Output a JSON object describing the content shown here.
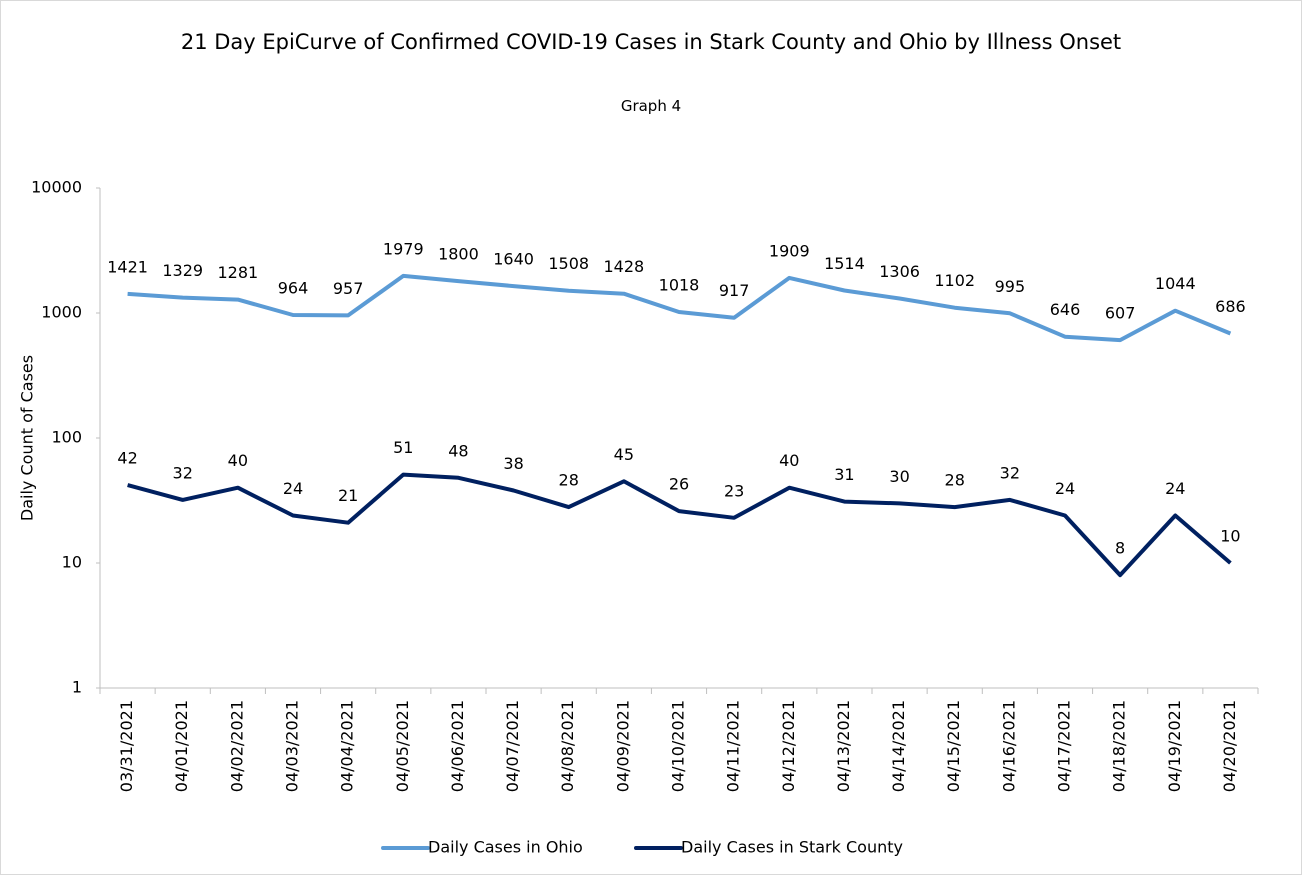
{
  "chart_data": {
    "type": "line",
    "title": "21 Day EpiCurve of Confirmed COVID-19 Cases in Stark County and Ohio by Illness Onset",
    "subtitle": "Graph 4",
    "y_label": "Daily Count of Cases",
    "categories": [
      "03/31/2021",
      "04/01/2021",
      "04/02/2021",
      "04/03/2021",
      "04/04/2021",
      "04/05/2021",
      "04/06/2021",
      "04/07/2021",
      "04/08/2021",
      "04/09/2021",
      "04/10/2021",
      "04/11/2021",
      "04/12/2021",
      "04/13/2021",
      "04/14/2021",
      "04/15/2021",
      "04/16/2021",
      "04/17/2021",
      "04/18/2021",
      "04/19/2021",
      "04/20/2021"
    ],
    "series": [
      {
        "name": "Daily Cases in Ohio",
        "color": "#5b9bd5",
        "values": [
          1421,
          1329,
          1281,
          964,
          957,
          1979,
          1800,
          1640,
          1508,
          1428,
          1018,
          917,
          1909,
          1514,
          1306,
          1102,
          995,
          646,
          607,
          1044,
          686
        ]
      },
      {
        "name": "Daily Cases in Stark County",
        "color": "#002060",
        "values": [
          42,
          32,
          40,
          24,
          21,
          51,
          48,
          38,
          28,
          45,
          26,
          23,
          40,
          31,
          30,
          28,
          32,
          24,
          8,
          24,
          10
        ]
      }
    ],
    "ylim": [
      1,
      10000
    ],
    "yticks": [
      1,
      10,
      100,
      1000,
      10000
    ],
    "y_log_scale": true,
    "grid": false,
    "legend_position": "bottom"
  }
}
